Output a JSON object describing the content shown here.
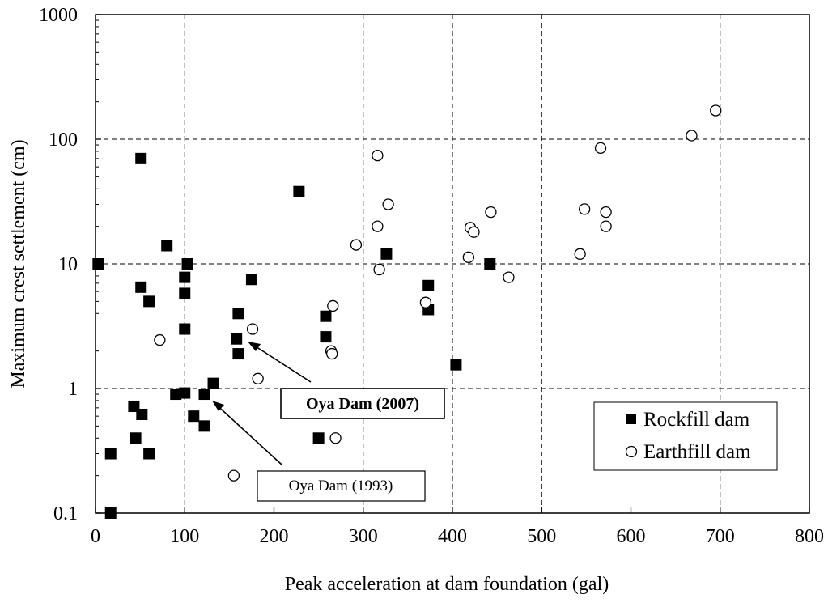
{
  "chart_data": {
    "type": "scatter",
    "xlabel": "Peak acceleration at dam foundation (gal)",
    "ylabel": "Maximum crest settlement (cm)",
    "xlim": [
      0,
      800
    ],
    "ylim": [
      0.1,
      1000
    ],
    "y_scale": "log",
    "x_ticks": [
      "0",
      "100",
      "200",
      "300",
      "400",
      "500",
      "600",
      "700",
      "800"
    ],
    "y_ticks": [
      "0.1",
      "1",
      "10",
      "100",
      "1000"
    ],
    "grid": true,
    "legend_position": "bottom-right",
    "series": [
      {
        "name": "Rockfill dam",
        "marker": "filled-square",
        "color": "#000000",
        "points": [
          [
            3,
            10
          ],
          [
            17,
            0.3
          ],
          [
            17,
            0.1
          ],
          [
            43,
            0.72
          ],
          [
            45,
            0.4
          ],
          [
            51,
            6.5
          ],
          [
            51,
            70
          ],
          [
            52,
            0.62
          ],
          [
            60,
            5.0
          ],
          [
            60,
            0.3
          ],
          [
            80,
            14
          ],
          [
            90,
            0.9
          ],
          [
            100,
            7.8
          ],
          [
            100,
            5.8
          ],
          [
            100,
            3.0
          ],
          [
            100,
            0.92
          ],
          [
            103,
            10
          ],
          [
            110,
            0.6
          ],
          [
            122,
            0.9
          ],
          [
            122,
            0.5
          ],
          [
            132,
            1.1
          ],
          [
            158,
            2.5
          ],
          [
            160,
            4.0
          ],
          [
            160,
            1.9
          ],
          [
            175,
            7.5
          ],
          [
            228,
            38
          ],
          [
            250,
            0.4
          ],
          [
            258,
            3.8
          ],
          [
            258,
            2.6
          ],
          [
            326,
            12
          ],
          [
            373,
            6.7
          ],
          [
            373,
            4.3
          ],
          [
            404,
            1.55
          ],
          [
            442,
            10
          ]
        ]
      },
      {
        "name": "Earthfill dam",
        "marker": "open-circle",
        "color": "#000000",
        "points": [
          [
            72,
            2.45
          ],
          [
            155,
            0.2
          ],
          [
            176,
            3.0
          ],
          [
            182,
            1.2
          ],
          [
            264,
            2.0
          ],
          [
            265,
            1.9
          ],
          [
            266,
            4.6
          ],
          [
            269,
            0.4
          ],
          [
            292,
            14.2
          ],
          [
            316,
            74
          ],
          [
            316,
            20
          ],
          [
            318,
            9.0
          ],
          [
            328,
            30
          ],
          [
            370,
            4.9
          ],
          [
            418,
            11.3
          ],
          [
            420,
            19.5
          ],
          [
            424,
            18
          ],
          [
            443,
            26
          ],
          [
            463,
            7.8
          ],
          [
            543,
            12
          ],
          [
            548,
            27.5
          ],
          [
            566,
            85
          ],
          [
            572,
            26
          ],
          [
            572,
            20
          ],
          [
            668,
            107
          ],
          [
            695,
            170
          ]
        ]
      }
    ],
    "annotations": [
      {
        "text": "Oya Dam (2007)",
        "bold": true,
        "points_to": [
          176,
          2.4
        ]
      },
      {
        "text": "Oya Dam (1993)",
        "bold": false,
        "points_to": [
          133,
          0.8
        ]
      }
    ]
  }
}
